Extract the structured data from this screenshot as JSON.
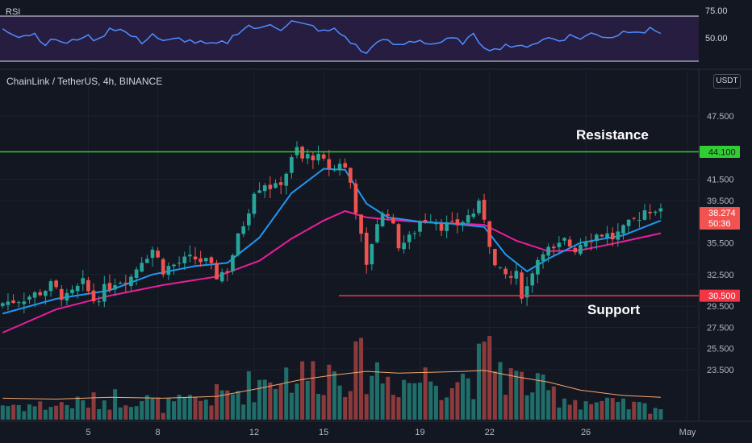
{
  "header": {
    "symbol": "ChainLink / TetherUS, 4h, BINANCE",
    "currency": "USDT"
  },
  "rsi_panel": {
    "title": "RSI",
    "ticks": [
      "75.00",
      "50.00"
    ]
  },
  "price_panel": {
    "ticks": [
      "47.500",
      "41.500",
      "39.500",
      "35.500",
      "32.500",
      "29.500",
      "27.500",
      "25.500",
      "23.500"
    ],
    "resistance": {
      "text": "Resistance",
      "value": "44.100",
      "color": "#32cd32"
    },
    "support": {
      "text": "Support",
      "value": "30.500",
      "color": "#f23645"
    },
    "last_price": {
      "value": "38.274",
      "countdown": "50:36",
      "color": "#f05350"
    }
  },
  "x_axis": {
    "ticks": [
      "5",
      "8",
      "12",
      "15",
      "19",
      "22",
      "26",
      "May"
    ]
  },
  "colors": {
    "background": "#131722",
    "up": "#26a69a",
    "down": "#ef5350",
    "ma_fast": "#2196f3",
    "ma_slow": "#e91e9c",
    "rsi_line": "#4f8dff",
    "volume_ma": "#f5a66b"
  },
  "chart_data": {
    "type": "candlestick",
    "timeframe": "4h",
    "ylim": [
      22.0,
      49.0
    ],
    "resistance_level": 44.1,
    "support_level": 30.5,
    "last_price": 38.274,
    "close_path": [
      [
        0,
        29.8
      ],
      [
        6,
        30.6
      ],
      [
        9,
        31.4
      ],
      [
        12,
        30.2
      ],
      [
        15,
        31.6
      ],
      [
        17,
        30.1
      ],
      [
        19,
        31.0
      ],
      [
        21,
        31.9
      ],
      [
        24,
        32.3
      ],
      [
        26,
        34.0
      ],
      [
        28,
        34.9
      ],
      [
        30,
        33.0
      ],
      [
        33,
        33.6
      ],
      [
        36,
        34.0
      ],
      [
        38,
        33.6
      ],
      [
        40,
        32.4
      ],
      [
        42,
        33.0
      ],
      [
        44,
        35.9
      ],
      [
        46,
        38.8
      ],
      [
        47,
        40.6
      ],
      [
        49,
        41.2
      ],
      [
        51,
        40.6
      ],
      [
        53,
        42.2
      ],
      [
        55,
        44.3
      ],
      [
        56,
        43.4
      ],
      [
        58,
        43.8
      ],
      [
        60,
        43.0
      ],
      [
        62,
        42.4
      ],
      [
        63,
        43.2
      ],
      [
        64,
        42.5
      ],
      [
        65,
        41.2
      ],
      [
        66,
        38.8
      ],
      [
        68,
        33.0
      ],
      [
        69,
        35.6
      ],
      [
        70,
        37.5
      ],
      [
        72,
        38.6
      ],
      [
        73,
        36.8
      ],
      [
        74,
        35.4
      ],
      [
        76,
        35.8
      ],
      [
        78,
        37.6
      ],
      [
        80,
        38.0
      ],
      [
        82,
        37.2
      ],
      [
        84,
        37.0
      ],
      [
        86,
        37.6
      ],
      [
        88,
        38.4
      ],
      [
        89,
        38.9
      ],
      [
        90,
        38.0
      ],
      [
        91,
        35.6
      ],
      [
        92,
        33.2
      ],
      [
        93,
        32.6
      ],
      [
        94,
        32.4
      ],
      [
        95,
        32.2
      ],
      [
        96,
        32.3
      ],
      [
        97,
        30.8
      ],
      [
        98,
        31.3
      ],
      [
        99,
        33.0
      ],
      [
        100,
        34.0
      ],
      [
        101,
        35.0
      ],
      [
        103,
        34.6
      ],
      [
        105,
        35.6
      ],
      [
        107,
        35.0
      ],
      [
        109,
        36.0
      ],
      [
        112,
        36.4
      ],
      [
        114,
        36.0
      ],
      [
        116,
        36.6
      ],
      [
        118,
        37.6
      ],
      [
        120,
        38.6
      ],
      [
        122,
        38.8
      ],
      [
        123,
        38.274
      ]
    ],
    "ma_fast": [
      [
        0,
        28.8
      ],
      [
        10,
        30.2
      ],
      [
        20,
        31.0
      ],
      [
        28,
        32.5
      ],
      [
        36,
        33.3
      ],
      [
        42,
        33.6
      ],
      [
        48,
        36.0
      ],
      [
        54,
        40.2
      ],
      [
        60,
        42.5
      ],
      [
        64,
        42.4
      ],
      [
        68,
        39.2
      ],
      [
        72,
        37.9
      ],
      [
        78,
        37.5
      ],
      [
        84,
        37.3
      ],
      [
        90,
        37.0
      ],
      [
        94,
        34.4
      ],
      [
        98,
        32.8
      ],
      [
        102,
        34.0
      ],
      [
        108,
        35.5
      ],
      [
        116,
        36.2
      ],
      [
        123,
        37.6
      ]
    ],
    "ma_slow": [
      [
        0,
        27.0
      ],
      [
        10,
        29.2
      ],
      [
        20,
        30.5
      ],
      [
        30,
        31.5
      ],
      [
        40,
        32.3
      ],
      [
        48,
        33.8
      ],
      [
        54,
        35.9
      ],
      [
        60,
        37.6
      ],
      [
        64,
        38.5
      ],
      [
        68,
        37.9
      ],
      [
        74,
        37.6
      ],
      [
        80,
        37.4
      ],
      [
        86,
        37.3
      ],
      [
        90,
        37.2
      ],
      [
        96,
        35.7
      ],
      [
        102,
        34.7
      ],
      [
        108,
        34.8
      ],
      [
        114,
        35.4
      ],
      [
        123,
        36.4
      ]
    ],
    "rsi_ylim": [
      38,
      82
    ],
    "rsi_levels": [
      70,
      30
    ],
    "rsi_path": [
      [
        0,
        66
      ],
      [
        3,
        58
      ],
      [
        6,
        60
      ],
      [
        8,
        50
      ],
      [
        10,
        55
      ],
      [
        12,
        50
      ],
      [
        15,
        58
      ],
      [
        18,
        54
      ],
      [
        20,
        66
      ],
      [
        22,
        64
      ],
      [
        24,
        58
      ],
      [
        26,
        52
      ],
      [
        28,
        60
      ],
      [
        30,
        52
      ],
      [
        33,
        55
      ],
      [
        36,
        52
      ],
      [
        39,
        49
      ],
      [
        42,
        52
      ],
      [
        44,
        62
      ],
      [
        46,
        68
      ],
      [
        48,
        64
      ],
      [
        50,
        70
      ],
      [
        52,
        65
      ],
      [
        54,
        72
      ],
      [
        56,
        69
      ],
      [
        58,
        67
      ],
      [
        60,
        62
      ],
      [
        62,
        64
      ],
      [
        64,
        57
      ],
      [
        66,
        48
      ],
      [
        68,
        40
      ],
      [
        70,
        54
      ],
      [
        72,
        52
      ],
      [
        74,
        48
      ],
      [
        76,
        52
      ],
      [
        78,
        54
      ],
      [
        80,
        50
      ],
      [
        82,
        52
      ],
      [
        84,
        55
      ],
      [
        86,
        52
      ],
      [
        88,
        58
      ],
      [
        90,
        48
      ],
      [
        92,
        44
      ],
      [
        94,
        50
      ],
      [
        96,
        46
      ],
      [
        98,
        49
      ],
      [
        100,
        52
      ],
      [
        102,
        56
      ],
      [
        104,
        54
      ],
      [
        106,
        58
      ],
      [
        108,
        56
      ],
      [
        110,
        60
      ],
      [
        112,
        58
      ],
      [
        114,
        57
      ],
      [
        116,
        62
      ],
      [
        118,
        64
      ],
      [
        120,
        62
      ],
      [
        121,
        64
      ],
      [
        123,
        62
      ]
    ],
    "volume_envelope": [
      [
        0,
        0.22
      ],
      [
        8,
        0.2
      ],
      [
        16,
        0.25
      ],
      [
        24,
        0.35
      ],
      [
        30,
        0.2
      ],
      [
        38,
        0.3
      ],
      [
        44,
        0.42
      ],
      [
        48,
        0.55
      ],
      [
        52,
        0.68
      ],
      [
        56,
        0.62
      ],
      [
        60,
        0.7
      ],
      [
        64,
        0.72
      ],
      [
        68,
        0.78
      ],
      [
        72,
        0.6
      ],
      [
        76,
        0.55
      ],
      [
        80,
        0.62
      ],
      [
        84,
        0.58
      ],
      [
        88,
        0.65
      ],
      [
        90,
        0.82
      ],
      [
        92,
        0.9
      ],
      [
        94,
        0.65
      ],
      [
        98,
        0.5
      ],
      [
        102,
        0.4
      ],
      [
        106,
        0.3
      ],
      [
        110,
        0.25
      ],
      [
        116,
        0.2
      ],
      [
        123,
        0.18
      ]
    ],
    "volume_ma": [
      [
        0,
        0.24
      ],
      [
        10,
        0.23
      ],
      [
        20,
        0.25
      ],
      [
        30,
        0.24
      ],
      [
        40,
        0.26
      ],
      [
        48,
        0.35
      ],
      [
        56,
        0.45
      ],
      [
        62,
        0.5
      ],
      [
        68,
        0.54
      ],
      [
        74,
        0.52
      ],
      [
        80,
        0.53
      ],
      [
        86,
        0.54
      ],
      [
        90,
        0.55
      ],
      [
        96,
        0.48
      ],
      [
        102,
        0.42
      ],
      [
        108,
        0.33
      ],
      [
        116,
        0.27
      ],
      [
        123,
        0.25
      ]
    ],
    "volume_ylim": [
      0,
      1
    ],
    "x_tick_labels": [
      "5",
      "8",
      "12",
      "15",
      "19",
      "22",
      "26",
      "May"
    ],
    "x_tick_index": [
      16,
      29,
      47,
      60,
      78,
      91,
      109,
      128
    ]
  }
}
